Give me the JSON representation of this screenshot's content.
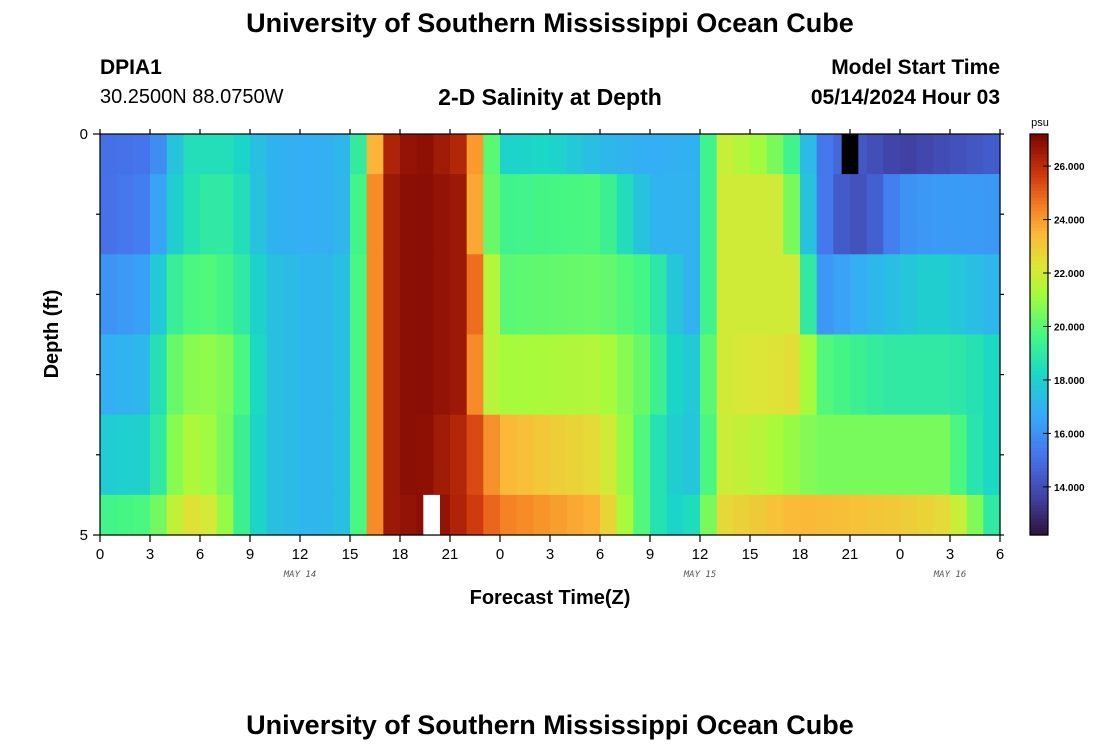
{
  "header": {
    "main_title": "University of Southern Mississippi Ocean Cube",
    "station": "DPIA1",
    "coords": "30.2500N  88.0750W",
    "plot_title": "2-D Salinity at Depth",
    "model_start_label": "Model Start Time",
    "model_start_value": "05/14/2024 Hour 03"
  },
  "footer": {
    "repeat_title": "University of Southern Mississippi Ocean Cube"
  },
  "chart_data": {
    "type": "heatmap",
    "title": "2-D Salinity at Depth",
    "xlabel": "Forecast Time(Z)",
    "ylabel": "Depth (ft)",
    "x_range_hours": [
      0,
      54
    ],
    "y_range_ft": [
      0,
      5
    ],
    "x_ticks": [
      "0",
      "3",
      "6",
      "9",
      "12",
      "15",
      "18",
      "21",
      "0",
      "3",
      "6",
      "9",
      "12",
      "15",
      "18",
      "21",
      "0",
      "3",
      "6"
    ],
    "y_ticks": [
      "0",
      "5"
    ],
    "date_labels": [
      {
        "text": "MAY 14",
        "hour": 12
      },
      {
        "text": "MAY 15",
        "hour": 36
      },
      {
        "text": "MAY 16",
        "hour": 51
      }
    ],
    "colorbar": {
      "unit": "psu",
      "range": [
        12.2,
        27.2
      ],
      "ticks": [
        "14.000",
        "16.000",
        "18.000",
        "20.000",
        "22.000",
        "24.000",
        "26.000"
      ]
    },
    "layers": [
      {
        "depth_top": 0.0,
        "depth_bottom": 0.5,
        "keys": [
          [
            0,
            15.0
          ],
          [
            3,
            15.2
          ],
          [
            4,
            16.5
          ],
          [
            5,
            18.5
          ],
          [
            8,
            18.5
          ],
          [
            10,
            17.0
          ],
          [
            13,
            16.8
          ],
          [
            15,
            17.2
          ],
          [
            16,
            21
          ],
          [
            17,
            26
          ],
          [
            19,
            27
          ],
          [
            22,
            26
          ],
          [
            23,
            22
          ],
          [
            24,
            18
          ],
          [
            27,
            18.2
          ],
          [
            30,
            17.2
          ],
          [
            33,
            16.8
          ],
          [
            36,
            17
          ],
          [
            37,
            22
          ],
          [
            40,
            21
          ],
          [
            42,
            19
          ],
          [
            43,
            15.5
          ],
          [
            45,
            14.5
          ],
          [
            48,
            13.5
          ],
          [
            51,
            14.0
          ],
          [
            54,
            14.5
          ]
        ]
      },
      {
        "depth_top": 0.5,
        "depth_bottom": 1.5,
        "keys": [
          [
            0,
            15.0
          ],
          [
            3,
            15.5
          ],
          [
            4,
            17.5
          ],
          [
            6,
            19.0
          ],
          [
            8,
            19.0
          ],
          [
            10,
            17.0
          ],
          [
            13,
            16.8
          ],
          [
            15,
            17.2
          ],
          [
            16,
            22
          ],
          [
            17,
            26.5
          ],
          [
            19,
            27
          ],
          [
            22,
            26.5
          ],
          [
            23,
            21
          ],
          [
            24,
            19.5
          ],
          [
            30,
            19.8
          ],
          [
            32,
            18
          ],
          [
            33,
            17
          ],
          [
            36,
            17
          ],
          [
            37,
            22
          ],
          [
            41,
            22
          ],
          [
            43,
            16
          ],
          [
            44,
            14.5
          ],
          [
            46,
            14
          ],
          [
            48,
            16
          ],
          [
            51,
            16.3
          ],
          [
            54,
            16.2
          ]
        ]
      },
      {
        "depth_top": 1.5,
        "depth_bottom": 2.5,
        "keys": [
          [
            0,
            16.0
          ],
          [
            3,
            16.5
          ],
          [
            4,
            19
          ],
          [
            6,
            20
          ],
          [
            8,
            19.5
          ],
          [
            10,
            17.5
          ],
          [
            13,
            17.0
          ],
          [
            15,
            17.5
          ],
          [
            16,
            22
          ],
          [
            17,
            26.5
          ],
          [
            19,
            27
          ],
          [
            22,
            26.5
          ],
          [
            23,
            23
          ],
          [
            24,
            20
          ],
          [
            30,
            20.3
          ],
          [
            33,
            19.5
          ],
          [
            35,
            17
          ],
          [
            36,
            17
          ],
          [
            37,
            22
          ],
          [
            42,
            22
          ],
          [
            43,
            16
          ],
          [
            46,
            17
          ],
          [
            50,
            18
          ],
          [
            54,
            17
          ]
        ]
      },
      {
        "depth_top": 2.5,
        "depth_bottom": 3.5,
        "keys": [
          [
            0,
            16.8
          ],
          [
            3,
            17.2
          ],
          [
            4,
            20
          ],
          [
            6,
            21.0
          ],
          [
            8,
            20.5
          ],
          [
            10,
            17.5
          ],
          [
            13,
            17
          ],
          [
            15,
            17.5
          ],
          [
            16,
            22
          ],
          [
            17,
            26.5
          ],
          [
            19,
            27
          ],
          [
            22,
            26.5
          ],
          [
            23,
            22
          ],
          [
            24,
            21.2
          ],
          [
            30,
            21.5
          ],
          [
            33,
            20
          ],
          [
            35,
            17.5
          ],
          [
            36,
            18
          ],
          [
            37,
            22
          ],
          [
            42,
            22.5
          ],
          [
            43,
            20
          ],
          [
            47,
            19
          ],
          [
            51,
            19
          ],
          [
            53,
            18.5
          ],
          [
            54,
            18
          ]
        ]
      },
      {
        "depth_top": 3.5,
        "depth_bottom": 4.5,
        "keys": [
          [
            0,
            17.8
          ],
          [
            3,
            18.0
          ],
          [
            4,
            20
          ],
          [
            5,
            21.5
          ],
          [
            7,
            21
          ],
          [
            8,
            20
          ],
          [
            10,
            17.5
          ],
          [
            13,
            17
          ],
          [
            15,
            17.5
          ],
          [
            16,
            22
          ],
          [
            17,
            26.5
          ],
          [
            19,
            27
          ],
          [
            22,
            26
          ],
          [
            24,
            23.5
          ],
          [
            30,
            22.5
          ],
          [
            32,
            20.5
          ],
          [
            34,
            18
          ],
          [
            36,
            17.5
          ],
          [
            37,
            22
          ],
          [
            40,
            21.5
          ],
          [
            43,
            20.5
          ],
          [
            47,
            20.5
          ],
          [
            51,
            20.5
          ],
          [
            52,
            19
          ],
          [
            54,
            18
          ]
        ]
      },
      {
        "depth_top": 4.5,
        "depth_bottom": 5.0,
        "keys": [
          [
            0,
            19.5
          ],
          [
            3,
            19.8
          ],
          [
            4,
            21
          ],
          [
            5,
            22.5
          ],
          [
            7,
            22.0
          ],
          [
            8,
            20
          ],
          [
            10,
            17.5
          ],
          [
            13,
            17
          ],
          [
            15,
            17.5
          ],
          [
            16,
            22
          ],
          [
            17,
            26.5
          ],
          [
            20,
            27
          ],
          [
            22,
            26
          ],
          [
            24,
            24.5
          ],
          [
            30,
            23.5
          ],
          [
            32,
            20.5
          ],
          [
            34,
            18
          ],
          [
            36,
            18.5
          ],
          [
            37,
            22.5
          ],
          [
            42,
            23.5
          ],
          [
            48,
            23.0
          ],
          [
            51,
            22.5
          ],
          [
            53,
            20
          ],
          [
            54,
            18
          ]
        ]
      }
    ],
    "special_marks": [
      {
        "hour": 19.9,
        "layer": 5,
        "color": "#ffffff"
      },
      {
        "hour": 45,
        "layer": 0,
        "color": "#000000"
      }
    ]
  }
}
